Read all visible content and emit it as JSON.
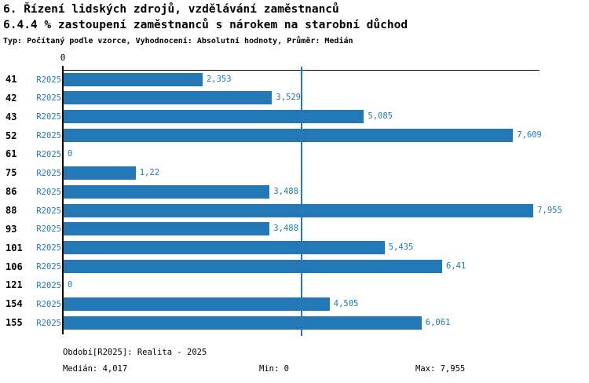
{
  "header": {
    "title_line1": "6. Řízení lidských zdrojů, vzdělávání zaměstnanců",
    "title_line2": "6.4.4 % zastoupení zaměstnanců s nárokem na starobní důchod",
    "meta_line": "Typ: Počítaný podle vzorce, Vyhodnocení: Absolutní hodnoty, Průměr: Medián"
  },
  "chart_data": {
    "type": "bar",
    "orientation": "horizontal",
    "title": "6.4.4 % zastoupení zaměstnanců s nárokem na starobní důchod",
    "categories": [
      "41",
      "42",
      "43",
      "52",
      "61",
      "75",
      "86",
      "88",
      "93",
      "101",
      "106",
      "121",
      "154",
      "155"
    ],
    "series": [
      {
        "name": "R2025",
        "values": [
          2.353,
          3.529,
          5.085,
          7.609,
          0,
          1.22,
          3.488,
          7.955,
          3.488,
          5.435,
          6.41,
          0,
          4.505,
          6.061
        ],
        "value_labels": [
          "2,353",
          "3,529",
          "5,085",
          "7,609",
          "0",
          "1,22",
          "3,488",
          "7,955",
          "3,488",
          "5,435",
          "6,41",
          "0",
          "4,505",
          "6,061"
        ]
      }
    ],
    "xlabel": "",
    "ylabel": "",
    "xlim": [
      0,
      8.06
    ],
    "x_tick_labels": [
      "0"
    ],
    "median_line_value": 4.017,
    "legend_position": "none",
    "grid": false,
    "colors": {
      "bar": "#2378b5",
      "text_accent": "#1e7ab0",
      "axis": "#000000"
    }
  },
  "footer": {
    "period_line": "Období[R2025]: Realita - 2025",
    "median_label": "Medián: 4,017",
    "min_label": "Min: 0",
    "max_label": "Max: 7,955"
  }
}
